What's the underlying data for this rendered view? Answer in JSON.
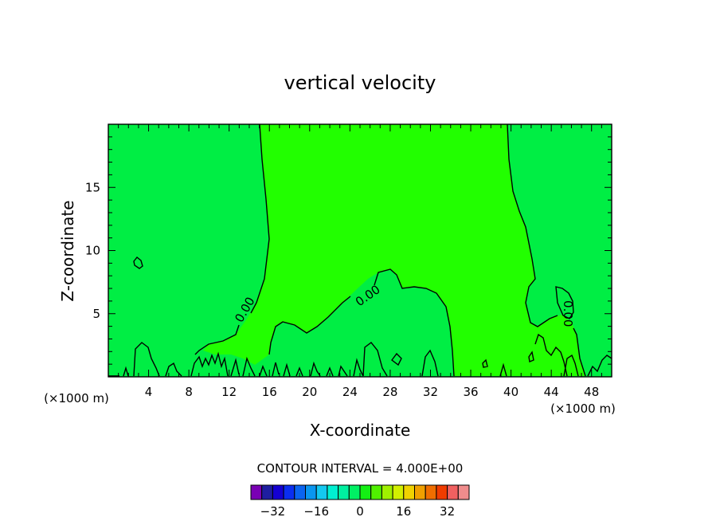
{
  "chart_data": {
    "type": "contour",
    "title": "vertical velocity",
    "xlabel": "X-coordinate",
    "ylabel": "Z-coordinate",
    "x_unit_left": "(×1000 m)",
    "x_unit_right": "(×1000 m)",
    "xlim": [
      0,
      50
    ],
    "ylim": [
      0,
      20
    ],
    "x_ticks": [
      "4",
      "8",
      "12",
      "16",
      "20",
      "24",
      "28",
      "32",
      "36",
      "40",
      "44",
      "48"
    ],
    "x_tick_values": [
      4,
      8,
      12,
      16,
      20,
      24,
      28,
      32,
      36,
      40,
      44,
      48
    ],
    "y_ticks": [
      "5",
      "10",
      "15"
    ],
    "y_tick_values": [
      5,
      10,
      15
    ],
    "contour_labels": [
      {
        "text": "0.00",
        "x": 13.6,
        "y": 5.3,
        "angle": -60
      },
      {
        "text": "0.00",
        "x": 25.8,
        "y": 6.4,
        "angle": -35
      },
      {
        "text": "0.00",
        "x": 45.6,
        "y": 5.0,
        "angle": 90
      }
    ],
    "contour_interval_text": "CONTOUR INTERVAL = 4.000E+00",
    "colorbar": {
      "labels": [
        "-32",
        "-16",
        "0",
        "16",
        "32"
      ],
      "label_values": [
        -32,
        -16,
        0,
        16,
        32
      ],
      "min": -40,
      "max": 40,
      "colors": [
        "#7a00b4",
        "#1e1ea0",
        "#1400d2",
        "#0a2ef0",
        "#0a64f0",
        "#0a96f0",
        "#14c8f0",
        "#00f0d2",
        "#00f0a0",
        "#00f064",
        "#14f014",
        "#50f000",
        "#a0f000",
        "#d2f000",
        "#f0d200",
        "#f0a000",
        "#f06e00",
        "#f03c00",
        "#f06060",
        "#f08c8c"
      ]
    },
    "region_colors": {
      "background": "#00ee44",
      "updraft": "#22ff00"
    },
    "x_tick_positions_note": "",
    "grid": false
  }
}
